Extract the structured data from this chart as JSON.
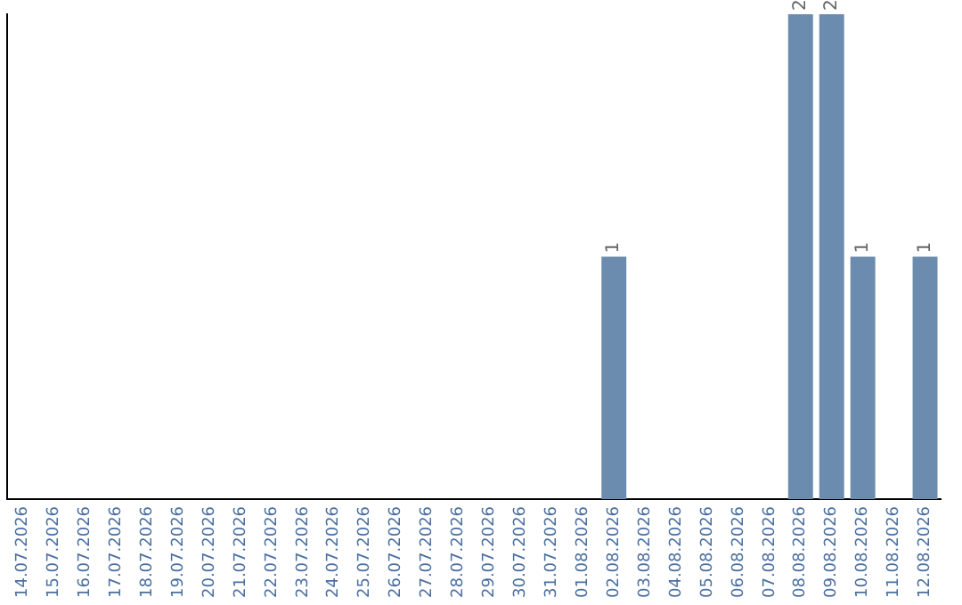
{
  "chart_data": {
    "type": "bar",
    "categories": [
      "14.07.2026",
      "15.07.2026",
      "16.07.2026",
      "17.07.2026",
      "18.07.2026",
      "19.07.2026",
      "20.07.2026",
      "21.07.2026",
      "22.07.2026",
      "23.07.2026",
      "24.07.2026",
      "25.07.2026",
      "26.07.2026",
      "27.07.2026",
      "28.07.2026",
      "29.07.2026",
      "30.07.2026",
      "31.07.2026",
      "01.08.2026",
      "02.08.2026",
      "03.08.2026",
      "04.08.2026",
      "05.08.2026",
      "06.08.2026",
      "07.08.2026",
      "08.08.2026",
      "09.08.2026",
      "10.08.2026",
      "11.08.2026",
      "12.08.2026"
    ],
    "values": [
      null,
      null,
      null,
      null,
      null,
      null,
      null,
      null,
      null,
      null,
      null,
      null,
      null,
      null,
      null,
      null,
      null,
      null,
      null,
      1,
      null,
      null,
      null,
      null,
      null,
      2,
      2,
      1,
      null,
      1
    ],
    "value_labels": [
      null,
      null,
      null,
      null,
      null,
      null,
      null,
      null,
      null,
      null,
      null,
      null,
      null,
      null,
      null,
      null,
      null,
      null,
      null,
      "1",
      null,
      null,
      null,
      null,
      null,
      "2",
      "2",
      "1",
      null,
      "1"
    ],
    "color": "#6b8cae",
    "ylim": [
      0,
      2
    ],
    "tick_labels": "x",
    "grid": false,
    "legend": false
  }
}
